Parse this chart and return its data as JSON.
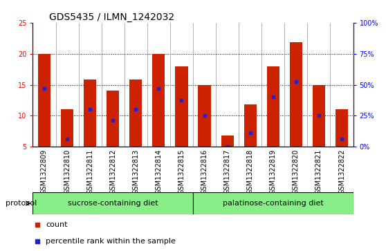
{
  "title": "GDS5435 / ILMN_1242032",
  "samples": [
    "GSM1322809",
    "GSM1322810",
    "GSM1322811",
    "GSM1322812",
    "GSM1322813",
    "GSM1322814",
    "GSM1322815",
    "GSM1322816",
    "GSM1322817",
    "GSM1322818",
    "GSM1322819",
    "GSM1322820",
    "GSM1322821",
    "GSM1322822"
  ],
  "counts": [
    20.0,
    11.0,
    15.8,
    14.0,
    15.8,
    20.0,
    17.9,
    15.0,
    6.8,
    11.8,
    17.9,
    21.8,
    15.0,
    11.0
  ],
  "percentile_values": [
    14.4,
    6.3,
    11.0,
    9.3,
    11.0,
    14.4,
    12.5,
    10.0,
    5.0,
    7.3,
    13.0,
    15.5,
    10.0,
    6.3
  ],
  "ylim_left": [
    5,
    25
  ],
  "ylim_right": [
    0,
    100
  ],
  "yticks_left": [
    5,
    10,
    15,
    20,
    25
  ],
  "yticks_right": [
    0,
    25,
    50,
    75,
    100
  ],
  "ytick_labels_right": [
    "0%",
    "25%",
    "50%",
    "75%",
    "100%"
  ],
  "bar_color": "#cc2200",
  "percentile_color": "#2222cc",
  "bar_width": 0.55,
  "group1_label": "sucrose-containing diet",
  "group2_label": "palatinose-containing diet",
  "group1_count": 7,
  "group2_count": 7,
  "protocol_label": "protocol",
  "legend_count_label": "count",
  "legend_percentile_label": "percentile rank within the sample",
  "group_bg_color": "#88ee88",
  "sample_bg_color": "#cccccc",
  "title_fontsize": 10,
  "tick_fontsize": 7,
  "label_fontsize": 8
}
